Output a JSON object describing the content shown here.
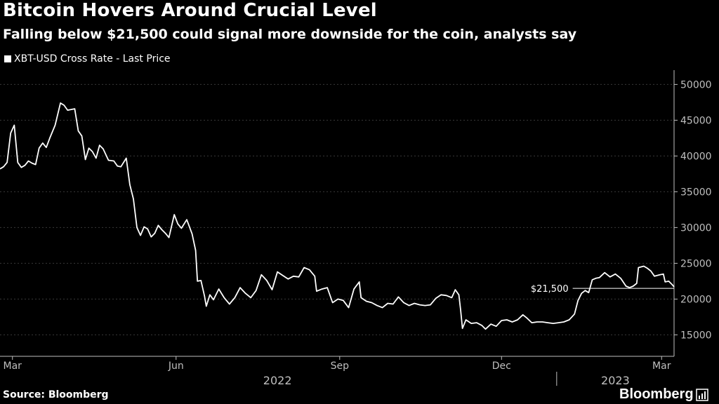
{
  "header": {
    "title": "Bitcoin Hovers Around Crucial Level",
    "subtitle": "Falling below $21,500 could signal more downside for the coin, analysts say"
  },
  "footer": {
    "source": "Source: Bloomberg",
    "brand": "Bloomberg",
    "brand_icon": "bar-chart-icon"
  },
  "colors": {
    "background": "#000000",
    "line": "#ffffff",
    "axis": "#bfbfbf",
    "grid": "#3a3a3a"
  },
  "chart_data": {
    "type": "line",
    "title": "Bitcoin Hovers Around Crucial Level",
    "subtitle": "Falling below $21,500 could signal more downside for the coin, analysts say",
    "xlabel": "",
    "ylabel": "",
    "y_axis_side": "right",
    "ylim": [
      12000,
      52000
    ],
    "xlim": [
      "2022-02-22",
      "2023-03-08"
    ],
    "y_ticks": [
      15000,
      20000,
      25000,
      30000,
      35000,
      40000,
      45000,
      50000
    ],
    "y_tick_labels": [
      "15000",
      "20000",
      "25000",
      "30000",
      "35000",
      "40000",
      "45000",
      "50000"
    ],
    "x_ticks": [
      {
        "date": "2022-03-01",
        "label": "Mar"
      },
      {
        "date": "2022-06-01",
        "label": "Jun"
      },
      {
        "date": "2022-09-01",
        "label": "Sep"
      },
      {
        "date": "2022-12-01",
        "label": "Dec"
      },
      {
        "date": "2023-03-01",
        "label": "Mar"
      }
    ],
    "year_labels": [
      {
        "label": "2022",
        "from": "2022-02-22",
        "to": "2022-12-31"
      },
      {
        "label": "2023",
        "from": "2023-01-01",
        "to": "2023-03-08"
      }
    ],
    "grid": "horizontal dashed",
    "legend": "top-left",
    "annotations": [
      {
        "type": "hline",
        "y": 21500,
        "label": "$21,500",
        "from": "2023-01-10",
        "to": "2023-03-08"
      }
    ],
    "series": [
      {
        "name": "XBT-USD Cross Rate - Last Price",
        "color": "#ffffff",
        "points": [
          [
            "2022-02-22",
            38200
          ],
          [
            "2022-02-24",
            38500
          ],
          [
            "2022-02-26",
            39100
          ],
          [
            "2022-02-28",
            43200
          ],
          [
            "2022-03-02",
            44300
          ],
          [
            "2022-03-04",
            39100
          ],
          [
            "2022-03-06",
            38400
          ],
          [
            "2022-03-08",
            38700
          ],
          [
            "2022-03-10",
            39300
          ],
          [
            "2022-03-12",
            39000
          ],
          [
            "2022-03-14",
            38800
          ],
          [
            "2022-03-16",
            41100
          ],
          [
            "2022-03-18",
            41800
          ],
          [
            "2022-03-20",
            41200
          ],
          [
            "2022-03-22",
            42500
          ],
          [
            "2022-03-25",
            44300
          ],
          [
            "2022-03-28",
            47400
          ],
          [
            "2022-03-30",
            47100
          ],
          [
            "2022-04-01",
            46400
          ],
          [
            "2022-04-03",
            46500
          ],
          [
            "2022-04-05",
            46600
          ],
          [
            "2022-04-07",
            43500
          ],
          [
            "2022-04-09",
            42800
          ],
          [
            "2022-04-11",
            39500
          ],
          [
            "2022-04-13",
            41100
          ],
          [
            "2022-04-15",
            40600
          ],
          [
            "2022-04-17",
            39700
          ],
          [
            "2022-04-19",
            41500
          ],
          [
            "2022-04-21",
            41000
          ],
          [
            "2022-04-24",
            39400
          ],
          [
            "2022-04-27",
            39300
          ],
          [
            "2022-04-29",
            38600
          ],
          [
            "2022-05-01",
            38500
          ],
          [
            "2022-05-04",
            39700
          ],
          [
            "2022-05-06",
            36000
          ],
          [
            "2022-05-08",
            34000
          ],
          [
            "2022-05-10",
            30000
          ],
          [
            "2022-05-12",
            28900
          ],
          [
            "2022-05-14",
            30100
          ],
          [
            "2022-05-16",
            29800
          ],
          [
            "2022-05-18",
            28700
          ],
          [
            "2022-05-20",
            29200
          ],
          [
            "2022-05-22",
            30300
          ],
          [
            "2022-05-24",
            29700
          ],
          [
            "2022-05-26",
            29200
          ],
          [
            "2022-05-28",
            28600
          ],
          [
            "2022-05-31",
            31800
          ],
          [
            "2022-06-02",
            30500
          ],
          [
            "2022-06-04",
            29900
          ],
          [
            "2022-06-07",
            31100
          ],
          [
            "2022-06-10",
            29100
          ],
          [
            "2022-06-12",
            26800
          ],
          [
            "2022-06-13",
            22500
          ],
          [
            "2022-06-15",
            22600
          ],
          [
            "2022-06-17",
            20400
          ],
          [
            "2022-06-18",
            19000
          ],
          [
            "2022-06-20",
            20600
          ],
          [
            "2022-06-22",
            19900
          ],
          [
            "2022-06-25",
            21400
          ],
          [
            "2022-06-28",
            20200
          ],
          [
            "2022-07-01",
            19300
          ],
          [
            "2022-07-04",
            20200
          ],
          [
            "2022-07-07",
            21600
          ],
          [
            "2022-07-10",
            20800
          ],
          [
            "2022-07-13",
            20200
          ],
          [
            "2022-07-16",
            21200
          ],
          [
            "2022-07-19",
            23400
          ],
          [
            "2022-07-22",
            22600
          ],
          [
            "2022-07-25",
            21300
          ],
          [
            "2022-07-28",
            23800
          ],
          [
            "2022-07-31",
            23300
          ],
          [
            "2022-08-03",
            22800
          ],
          [
            "2022-08-06",
            23200
          ],
          [
            "2022-08-09",
            23100
          ],
          [
            "2022-08-12",
            24400
          ],
          [
            "2022-08-15",
            24100
          ],
          [
            "2022-08-18",
            23200
          ],
          [
            "2022-08-19",
            21100
          ],
          [
            "2022-08-22",
            21400
          ],
          [
            "2022-08-25",
            21600
          ],
          [
            "2022-08-28",
            19500
          ],
          [
            "2022-08-31",
            20000
          ],
          [
            "2022-09-03",
            19800
          ],
          [
            "2022-09-06",
            18800
          ],
          [
            "2022-09-09",
            21400
          ],
          [
            "2022-09-12",
            22400
          ],
          [
            "2022-09-13",
            20200
          ],
          [
            "2022-09-16",
            19700
          ],
          [
            "2022-09-19",
            19500
          ],
          [
            "2022-09-22",
            19100
          ],
          [
            "2022-09-25",
            18800
          ],
          [
            "2022-09-28",
            19400
          ],
          [
            "2022-10-01",
            19300
          ],
          [
            "2022-10-04",
            20300
          ],
          [
            "2022-10-07",
            19500
          ],
          [
            "2022-10-10",
            19100
          ],
          [
            "2022-10-13",
            19400
          ],
          [
            "2022-10-16",
            19200
          ],
          [
            "2022-10-19",
            19100
          ],
          [
            "2022-10-22",
            19200
          ],
          [
            "2022-10-25",
            20100
          ],
          [
            "2022-10-28",
            20600
          ],
          [
            "2022-10-31",
            20500
          ],
          [
            "2022-11-03",
            20200
          ],
          [
            "2022-11-05",
            21300
          ],
          [
            "2022-11-07",
            20600
          ],
          [
            "2022-11-08",
            18500
          ],
          [
            "2022-11-09",
            15900
          ],
          [
            "2022-11-11",
            17100
          ],
          [
            "2022-11-14",
            16600
          ],
          [
            "2022-11-17",
            16700
          ],
          [
            "2022-11-20",
            16300
          ],
          [
            "2022-11-22",
            15800
          ],
          [
            "2022-11-25",
            16500
          ],
          [
            "2022-11-28",
            16200
          ],
          [
            "2022-12-01",
            17000
          ],
          [
            "2022-12-04",
            17100
          ],
          [
            "2022-12-07",
            16800
          ],
          [
            "2022-12-10",
            17100
          ],
          [
            "2022-12-13",
            17800
          ],
          [
            "2022-12-15",
            17400
          ],
          [
            "2022-12-18",
            16700
          ],
          [
            "2022-12-21",
            16800
          ],
          [
            "2022-12-24",
            16800
          ],
          [
            "2022-12-27",
            16700
          ],
          [
            "2022-12-30",
            16600
          ],
          [
            "2023-01-02",
            16700
          ],
          [
            "2023-01-05",
            16800
          ],
          [
            "2023-01-08",
            17100
          ],
          [
            "2023-01-11",
            17900
          ],
          [
            "2023-01-13",
            19800
          ],
          [
            "2023-01-15",
            20800
          ],
          [
            "2023-01-17",
            21200
          ],
          [
            "2023-01-19",
            20900
          ],
          [
            "2023-01-21",
            22700
          ],
          [
            "2023-01-23",
            22900
          ],
          [
            "2023-01-25",
            23000
          ],
          [
            "2023-01-28",
            23700
          ],
          [
            "2023-01-31",
            23100
          ],
          [
            "2023-02-03",
            23500
          ],
          [
            "2023-02-06",
            22900
          ],
          [
            "2023-02-09",
            21800
          ],
          [
            "2023-02-11",
            21600
          ],
          [
            "2023-02-13",
            21800
          ],
          [
            "2023-02-15",
            22200
          ],
          [
            "2023-02-16",
            24400
          ],
          [
            "2023-02-19",
            24600
          ],
          [
            "2023-02-21",
            24300
          ],
          [
            "2023-02-23",
            23900
          ],
          [
            "2023-02-25",
            23200
          ],
          [
            "2023-02-28",
            23400
          ],
          [
            "2023-03-02",
            23500
          ],
          [
            "2023-03-03",
            22400
          ],
          [
            "2023-03-05",
            22500
          ],
          [
            "2023-03-07",
            22000
          ],
          [
            "2023-03-08",
            21700
          ]
        ]
      }
    ]
  }
}
